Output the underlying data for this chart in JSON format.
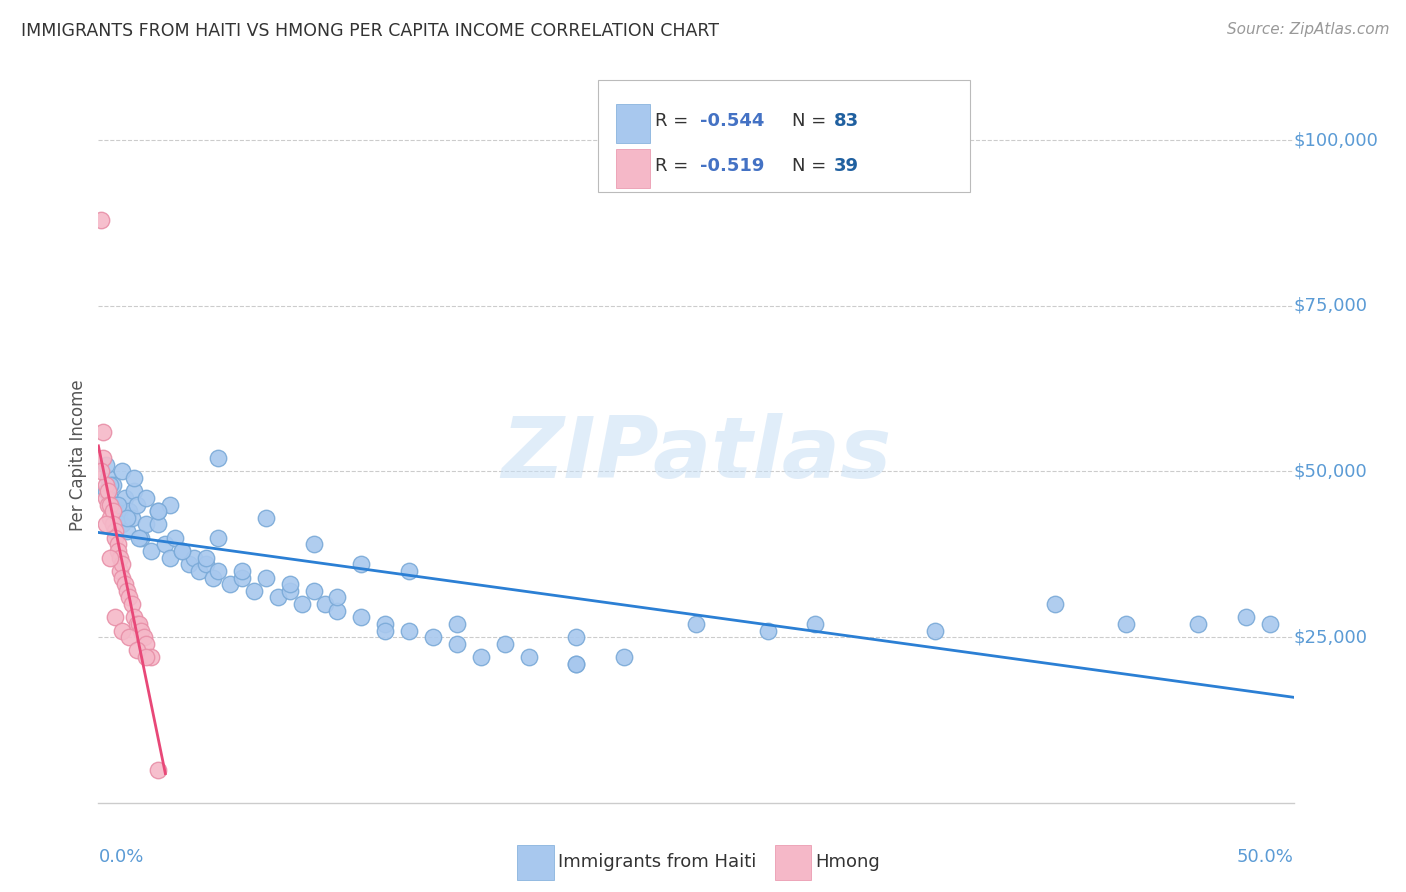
{
  "title": "IMMIGRANTS FROM HAITI VS HMONG PER CAPITA INCOME CORRELATION CHART",
  "source": "Source: ZipAtlas.com",
  "ylabel": "Per Capita Income",
  "watermark": "ZIPatlas",
  "legend_haiti_label": "Immigrants from Haiti",
  "legend_hmong_label": "Hmong",
  "haiti_R": -0.544,
  "haiti_N": 83,
  "hmong_R": -0.519,
  "hmong_N": 39,
  "xlim": [
    0.0,
    0.5
  ],
  "ylim": [
    0,
    105000
  ],
  "yticks": [
    25000,
    50000,
    75000,
    100000
  ],
  "ytick_labels": [
    "$25,000",
    "$50,000",
    "$75,000",
    "$100,000"
  ],
  "haiti_color": "#A8C8EE",
  "haiti_edge_color": "#7BAAD8",
  "haiti_line_color": "#2B7FD4",
  "hmong_color": "#F5B8C8",
  "hmong_edge_color": "#E890A8",
  "hmong_line_color": "#E84878",
  "background_color": "#FFFFFF",
  "grid_color": "#CCCCCC",
  "title_color": "#333333",
  "ytick_color": "#5B9BD5",
  "legend_R_color": "#4472C4",
  "legend_N_color": "#2060A0",
  "haiti_x": [
    0.003,
    0.004,
    0.005,
    0.006,
    0.007,
    0.008,
    0.009,
    0.01,
    0.011,
    0.012,
    0.013,
    0.014,
    0.015,
    0.016,
    0.018,
    0.02,
    0.022,
    0.025,
    0.028,
    0.03,
    0.032,
    0.035,
    0.038,
    0.04,
    0.042,
    0.045,
    0.048,
    0.05,
    0.055,
    0.06,
    0.065,
    0.07,
    0.075,
    0.08,
    0.085,
    0.09,
    0.095,
    0.1,
    0.11,
    0.12,
    0.13,
    0.14,
    0.15,
    0.16,
    0.17,
    0.18,
    0.2,
    0.22,
    0.25,
    0.28,
    0.01,
    0.015,
    0.02,
    0.025,
    0.03,
    0.05,
    0.07,
    0.09,
    0.11,
    0.13,
    0.003,
    0.005,
    0.008,
    0.012,
    0.017,
    0.025,
    0.035,
    0.045,
    0.06,
    0.08,
    0.1,
    0.15,
    0.2,
    0.3,
    0.35,
    0.4,
    0.43,
    0.46,
    0.48,
    0.49,
    0.05,
    0.12,
    0.2
  ],
  "haiti_y": [
    47000,
    49000,
    46000,
    48000,
    45000,
    43000,
    44000,
    42000,
    46000,
    41000,
    44000,
    43000,
    47000,
    45000,
    40000,
    42000,
    38000,
    42000,
    39000,
    37000,
    40000,
    38000,
    36000,
    37000,
    35000,
    36000,
    34000,
    35000,
    33000,
    34000,
    32000,
    34000,
    31000,
    32000,
    30000,
    32000,
    30000,
    29000,
    28000,
    27000,
    26000,
    25000,
    24000,
    22000,
    24000,
    22000,
    21000,
    22000,
    27000,
    26000,
    50000,
    49000,
    46000,
    44000,
    45000,
    40000,
    43000,
    39000,
    36000,
    35000,
    51000,
    48000,
    45000,
    43000,
    40000,
    44000,
    38000,
    37000,
    35000,
    33000,
    31000,
    27000,
    25000,
    27000,
    26000,
    30000,
    27000,
    27000,
    28000,
    27000,
    52000,
    26000,
    21000
  ],
  "hmong_x": [
    0.001,
    0.002,
    0.002,
    0.003,
    0.003,
    0.004,
    0.004,
    0.005,
    0.005,
    0.006,
    0.006,
    0.007,
    0.007,
    0.008,
    0.008,
    0.009,
    0.009,
    0.01,
    0.01,
    0.011,
    0.012,
    0.013,
    0.014,
    0.015,
    0.016,
    0.017,
    0.018,
    0.019,
    0.02,
    0.022,
    0.001,
    0.003,
    0.005,
    0.007,
    0.01,
    0.013,
    0.016,
    0.02,
    0.025
  ],
  "hmong_y": [
    88000,
    56000,
    52000,
    48000,
    46000,
    47000,
    45000,
    45000,
    43000,
    44000,
    42000,
    41000,
    40000,
    39000,
    38000,
    37000,
    35000,
    36000,
    34000,
    33000,
    32000,
    31000,
    30000,
    28000,
    27000,
    27000,
    26000,
    25000,
    24000,
    22000,
    50000,
    42000,
    37000,
    28000,
    26000,
    25000,
    23000,
    22000,
    5000
  ]
}
